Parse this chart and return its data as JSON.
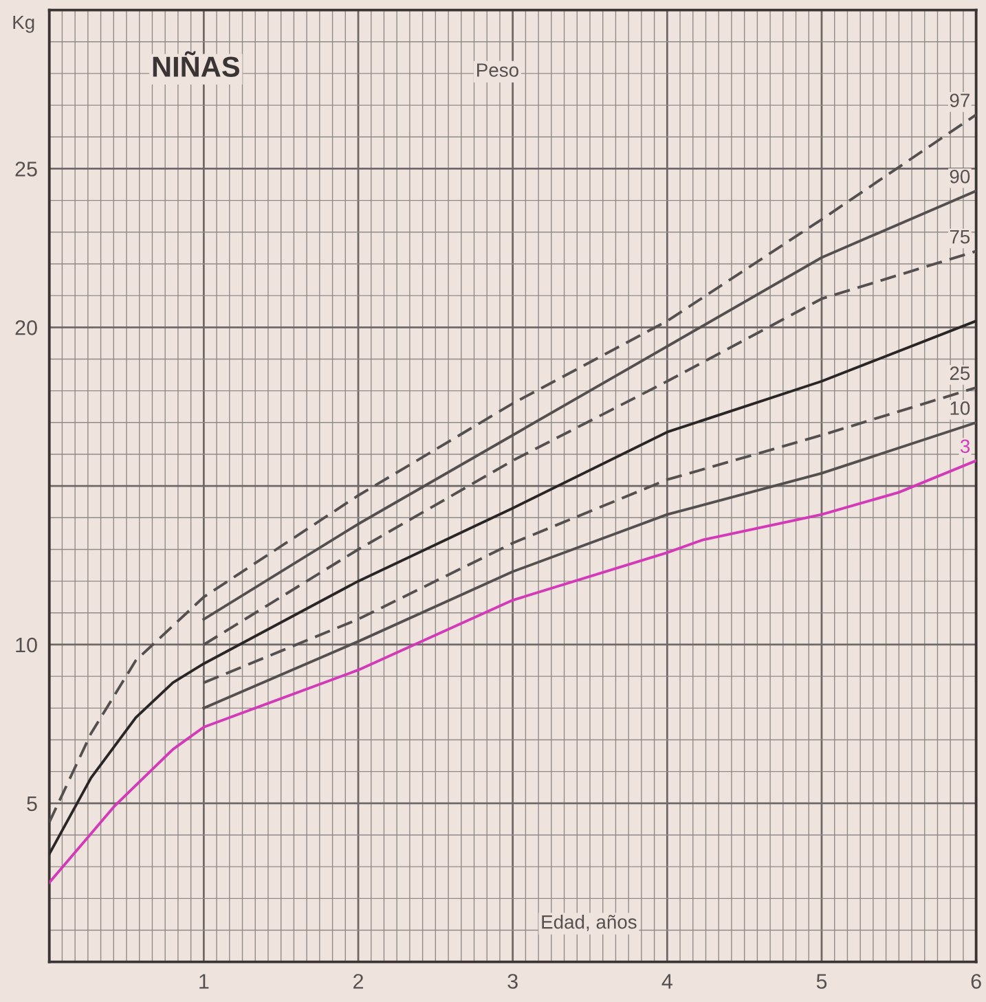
{
  "chart_data": {
    "type": "line",
    "title": "NIÑAS",
    "subtitle": "Peso",
    "xlabel": "Edad, años",
    "ylabel": "Kg",
    "xlim": [
      0,
      6
    ],
    "ylim": [
      0,
      30
    ],
    "xticks": [
      {
        "value": 0,
        "label": null
      },
      1,
      2,
      3,
      4,
      5,
      6
    ],
    "yticks": [
      {
        "value": 0,
        "label": null
      },
      5,
      10,
      {
        "value": 15,
        "label": null
      },
      20,
      25
    ],
    "grid": true,
    "legend": false,
    "marker": "none",
    "series": [
      {
        "name": "97",
        "color": "#555050",
        "line_style": "dashed",
        "x": [
          0,
          0.27,
          0.56,
          1,
          2,
          3,
          4,
          5,
          6
        ],
        "values": [
          4.4,
          7.2,
          9.5,
          11.5,
          14.7,
          17.6,
          20.2,
          23.4,
          26.7
        ]
      },
      {
        "name": "90",
        "color": "#555050",
        "line_style": "solid",
        "x": [
          1,
          2,
          3,
          4,
          5,
          6
        ],
        "values": [
          10.8,
          13.8,
          16.6,
          19.4,
          22.2,
          24.3
        ]
      },
      {
        "name": "75",
        "color": "#555050",
        "line_style": "dashed",
        "x": [
          1,
          2,
          3,
          4,
          5,
          6
        ],
        "values": [
          10.0,
          13.0,
          15.8,
          18.3,
          20.9,
          22.4
        ]
      },
      {
        "color": "#2b2626",
        "line_style": "solid",
        "x": [
          0,
          0.27,
          0.56,
          0.8,
          1,
          2,
          3,
          4,
          5,
          6
        ],
        "values": [
          3.4,
          5.8,
          7.7,
          8.8,
          9.4,
          12.0,
          14.3,
          16.7,
          18.3,
          20.2
        ]
      },
      {
        "name": "25",
        "color": "#555050",
        "line_style": "dashed",
        "x": [
          1,
          2,
          3,
          4,
          5,
          6
        ],
        "values": [
          8.8,
          10.8,
          13.2,
          15.2,
          16.6,
          18.1
        ]
      },
      {
        "name": "10",
        "color": "#555050",
        "line_style": "solid",
        "x": [
          1,
          2,
          3,
          4,
          5,
          6
        ],
        "values": [
          8.0,
          10.1,
          12.3,
          14.1,
          15.4,
          17.0
        ]
      },
      {
        "name": "3",
        "color": "#d23ab8",
        "line_style": "solid",
        "x": [
          0,
          0.42,
          0.8,
          1,
          2,
          3,
          4,
          4.23,
          5,
          5.5,
          6
        ],
        "values": [
          2.5,
          4.9,
          6.7,
          7.4,
          9.2,
          11.4,
          12.9,
          13.3,
          14.1,
          14.8,
          15.8
        ]
      }
    ]
  }
}
